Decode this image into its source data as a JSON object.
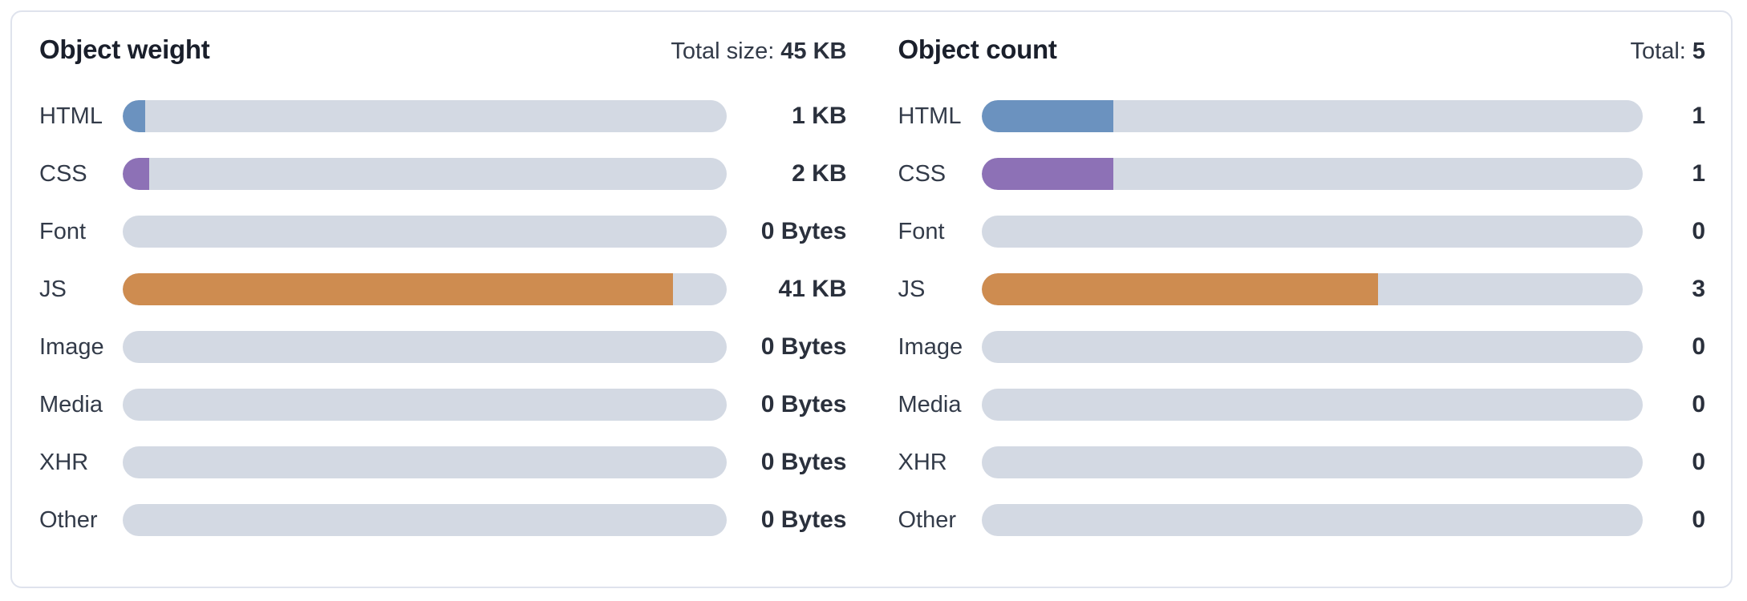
{
  "chart_data": [
    {
      "type": "bar",
      "orientation": "horizontal",
      "title": "Object weight",
      "total_label": "Total size:",
      "total_value": "45 KB",
      "categories": [
        "HTML",
        "CSS",
        "Font",
        "JS",
        "Image",
        "Media",
        "XHR",
        "Other"
      ],
      "values": [
        1,
        2,
        0,
        41,
        0,
        0,
        0,
        0
      ],
      "value_labels": [
        "1 KB",
        "2 KB",
        "0 Bytes",
        "41 KB",
        "0 Bytes",
        "0 Bytes",
        "0 Bytes",
        "0 Bytes"
      ],
      "unit": "KB",
      "max": 45,
      "grid": false,
      "legend": false
    },
    {
      "type": "bar",
      "orientation": "horizontal",
      "title": "Object count",
      "total_label": "Total:",
      "total_value": "5",
      "categories": [
        "HTML",
        "CSS",
        "Font",
        "JS",
        "Image",
        "Media",
        "XHR",
        "Other"
      ],
      "values": [
        1,
        1,
        0,
        3,
        0,
        0,
        0,
        0
      ],
      "value_labels": [
        "1",
        "1",
        "0",
        "3",
        "0",
        "0",
        "0",
        "0"
      ],
      "unit": "count",
      "max": 5,
      "grid": false,
      "legend": false
    }
  ],
  "colors": {
    "fill_colors": {
      "HTML": "#6b92bf",
      "CSS": "#8d71b6",
      "JS": "#ce8c50"
    },
    "bar_track": "#d3d9e3",
    "card_border": "#dfe3ed",
    "title_text": "#1a1f2b",
    "label_text": "#333b49",
    "value_text": "#2a303c"
  }
}
